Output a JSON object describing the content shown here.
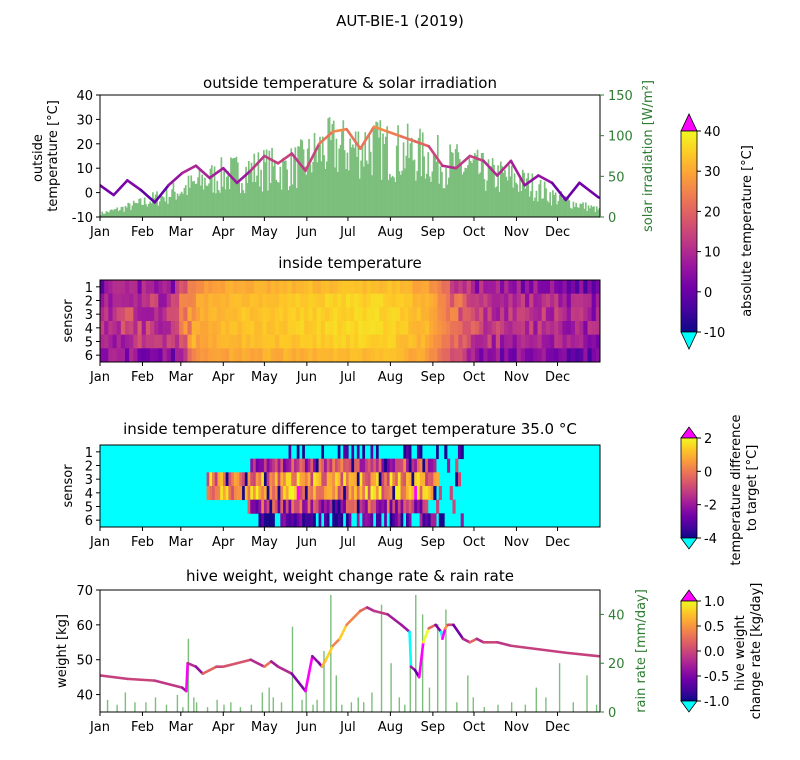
{
  "figure": {
    "title": "AUT-BIE-1 (2019)"
  },
  "months": [
    "Jan",
    "Feb",
    "Mar",
    "Apr",
    "May",
    "Jun",
    "Jul",
    "Aug",
    "Sep",
    "Oct",
    "Nov",
    "Dec"
  ],
  "colors": {
    "plasma": [
      "#0d0887",
      "#46039f",
      "#7201a8",
      "#9c179e",
      "#bd3786",
      "#d8576b",
      "#ed7953",
      "#fb9f3a",
      "#fdca26",
      "#f0f921"
    ],
    "over": "#ff00ff",
    "under": "#00ffff",
    "irradiation": "#7cbf7c",
    "rain": "#7cbf7c",
    "axis_green": "#2e7d32"
  },
  "chart_data": [
    {
      "id": "outside",
      "type": "line",
      "title": "outside temperature & solar irradiation",
      "ylabel": "outside temperature [°C]",
      "ylabel_lines": [
        "outside",
        "temperature [°C]"
      ],
      "ylim": [
        -10,
        40
      ],
      "yticks": [
        -10,
        0,
        10,
        20,
        30,
        40
      ],
      "y2label": "solar irradiation [W/m²]",
      "y2lim": [
        0,
        150
      ],
      "y2ticks": [
        0,
        50,
        100,
        150
      ],
      "series": [
        {
          "x": [
            0,
            10,
            20,
            30,
            40,
            50,
            60,
            70,
            80,
            90,
            100,
            110,
            120,
            130,
            140,
            150,
            160,
            170,
            180,
            190,
            200,
            210,
            220,
            230,
            240,
            250,
            260,
            270,
            280,
            290,
            300,
            310,
            320,
            330,
            340,
            350,
            364
          ],
          "values": [
            3,
            -1,
            5,
            1,
            -4,
            3,
            8,
            11,
            6,
            10,
            4,
            9,
            15,
            12,
            16,
            9,
            20,
            25,
            26,
            18,
            27,
            25,
            23,
            21,
            19,
            11,
            10,
            15,
            13,
            7,
            13,
            3,
            7,
            4,
            -3,
            4,
            -2
          ]
        },
        {
          "x": [
            0,
            15,
            30,
            45,
            60,
            75,
            90,
            105,
            120,
            135,
            150,
            160,
            170,
            180,
            195,
            210,
            225,
            240,
            255,
            270,
            285,
            300,
            315,
            330,
            345,
            364
          ],
          "values": [
            5,
            12,
            20,
            30,
            40,
            52,
            60,
            65,
            70,
            68,
            80,
            95,
            100,
            98,
            102,
            95,
            92,
            85,
            75,
            70,
            60,
            55,
            45,
            30,
            20,
            10
          ]
        }
      ]
    },
    {
      "id": "inside",
      "type": "heatmap",
      "title": "inside temperature",
      "ylabel": "sensor",
      "yticks": [
        "1",
        "2",
        "3",
        "4",
        "5",
        "6"
      ],
      "clim": [
        -10,
        40
      ],
      "colorbar_label": "absolute temperature [°C]",
      "colorbar_ticks": [
        -10,
        0,
        10,
        20,
        30,
        40
      ],
      "row_offsets": [
        -5,
        1,
        2,
        2,
        0,
        -6
      ],
      "x": [
        0,
        20,
        40,
        55,
        60,
        70,
        90,
        120,
        150,
        180,
        210,
        240,
        255,
        270,
        285,
        300,
        330,
        364
      ],
      "values": [
        8,
        12,
        10,
        10,
        20,
        29,
        32,
        33,
        34,
        35,
        35,
        31,
        22,
        14,
        10,
        10,
        8,
        5
      ]
    },
    {
      "id": "difference",
      "type": "heatmap",
      "title": "inside temperature difference to target temperature 35.0 °C",
      "target": 35.0,
      "ylabel": "sensor",
      "yticks": [
        "1",
        "2",
        "3",
        "4",
        "5",
        "6"
      ],
      "clim": [
        -4,
        2
      ],
      "colorbar_label": "temperature difference to target [°C]",
      "colorbar_label_lines": [
        "temperature difference",
        "to target [°C]"
      ],
      "colorbar_ticks": [
        -4,
        -2,
        0,
        2
      ],
      "row_ranges": [
        [
          135,
          250
        ],
        [
          110,
          245
        ],
        [
          78,
          245
        ],
        [
          78,
          245
        ],
        [
          108,
          240
        ],
        [
          115,
          245
        ]
      ],
      "row_mean": [
        -4.5,
        -1.2,
        0.3,
        0.5,
        -1.5,
        -3.2
      ]
    },
    {
      "id": "weight",
      "type": "line",
      "title": "hive weight, weight change rate & rain rate",
      "ylabel": "weight [kg]",
      "ylim": [
        35,
        70
      ],
      "yticks": [
        40,
        50,
        60,
        70
      ],
      "y2label": "rain rate [mm/day]",
      "y2lim": [
        0,
        50
      ],
      "y2ticks": [
        0,
        20,
        40
      ],
      "clim": [
        -1.0,
        1.0
      ],
      "colorbar_label": "hive weight change rate [kg/day]",
      "colorbar_label_lines": [
        "hive weight",
        "change rate [kg/day]"
      ],
      "colorbar_ticks": [
        -1.0,
        -0.5,
        0.0,
        0.5,
        1.0
      ],
      "series": [
        {
          "x": [
            0,
            20,
            40,
            60,
            63,
            64,
            70,
            75,
            80,
            85,
            90,
            100,
            110,
            120,
            125,
            130,
            140,
            150,
            155,
            160,
            162,
            165,
            170,
            175,
            180,
            185,
            190,
            195,
            200,
            210,
            220,
            226,
            227,
            230,
            233,
            236,
            240,
            245,
            249,
            250,
            252,
            254,
            258,
            265,
            270,
            275,
            280,
            290,
            300,
            320,
            340,
            364
          ],
          "values": [
            45.5,
            44.5,
            44,
            42,
            41,
            49,
            48,
            46,
            47,
            48,
            48,
            49,
            50,
            48,
            49.5,
            48,
            46,
            41,
            51,
            49,
            48,
            50,
            54,
            56,
            60,
            62,
            64,
            65,
            64,
            63,
            60,
            58,
            48,
            47,
            45,
            55,
            59,
            60,
            58,
            56,
            59,
            60,
            60,
            56,
            55,
            56,
            55,
            55,
            54,
            53,
            52,
            51
          ]
        },
        {
          "x": [
            5,
            12,
            18,
            25,
            33,
            40,
            48,
            56,
            60,
            64,
            68,
            70,
            78,
            85,
            90,
            95,
            102,
            110,
            118,
            123,
            126,
            132,
            140,
            147,
            150,
            155,
            158,
            163,
            168,
            172,
            176,
            183,
            188,
            192,
            198,
            205,
            212,
            218,
            222,
            226,
            230,
            235,
            240,
            246,
            252,
            260,
            268,
            272,
            280,
            290,
            300,
            310,
            318,
            325,
            335,
            345,
            355,
            362
          ],
          "values": [
            5,
            3,
            8,
            4,
            4,
            6,
            3,
            7,
            2,
            30,
            6,
            4,
            2,
            5,
            3,
            4,
            2,
            3,
            8,
            10,
            6,
            4,
            35,
            5,
            12,
            3,
            5,
            25,
            48,
            15,
            3,
            4,
            6,
            4,
            8,
            44,
            20,
            6,
            3,
            28,
            48,
            40,
            10,
            36,
            42,
            4,
            15,
            6,
            2,
            3,
            4,
            3,
            10,
            6,
            20,
            4,
            15,
            3
          ]
        }
      ]
    }
  ]
}
